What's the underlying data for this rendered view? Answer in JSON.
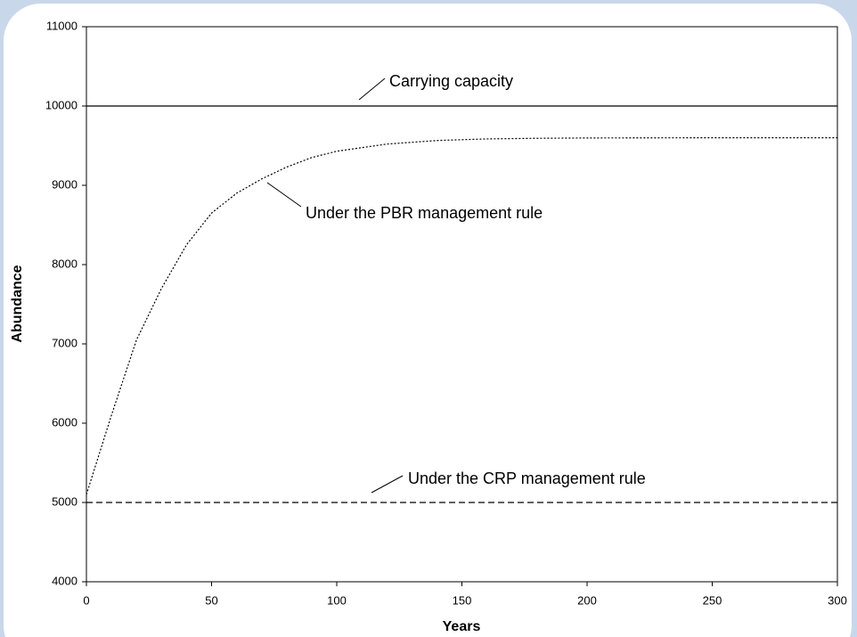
{
  "chart_data": {
    "type": "line",
    "xlabel": "Years",
    "ylabel": "Abundance",
    "xlim": [
      0,
      300
    ],
    "ylim": [
      4000,
      11000
    ],
    "xticks": [
      0,
      50,
      100,
      150,
      200,
      250,
      300
    ],
    "yticks": [
      4000,
      5000,
      6000,
      7000,
      8000,
      9000,
      10000,
      11000
    ],
    "grid": false,
    "series": [
      {
        "name": "Carrying capacity",
        "color": "#000000",
        "line_style": "solid",
        "x": [
          0,
          300
        ],
        "values": [
          10000,
          10000
        ]
      },
      {
        "name": "Under the PBR management rule",
        "color": "#000000",
        "line_style": "dotted",
        "x": [
          0,
          10,
          20,
          30,
          40,
          50,
          60,
          70,
          80,
          90,
          100,
          120,
          140,
          160,
          180,
          200,
          250,
          300
        ],
        "values": [
          5100,
          6100,
          7050,
          7700,
          8250,
          8650,
          8900,
          9080,
          9230,
          9350,
          9430,
          9520,
          9565,
          9585,
          9593,
          9597,
          9600,
          9600
        ]
      },
      {
        "name": "Under the CRP management rule",
        "color": "#000000",
        "line_style": "dashed",
        "x": [
          0,
          300
        ],
        "values": [
          5000,
          5000
        ]
      }
    ]
  }
}
